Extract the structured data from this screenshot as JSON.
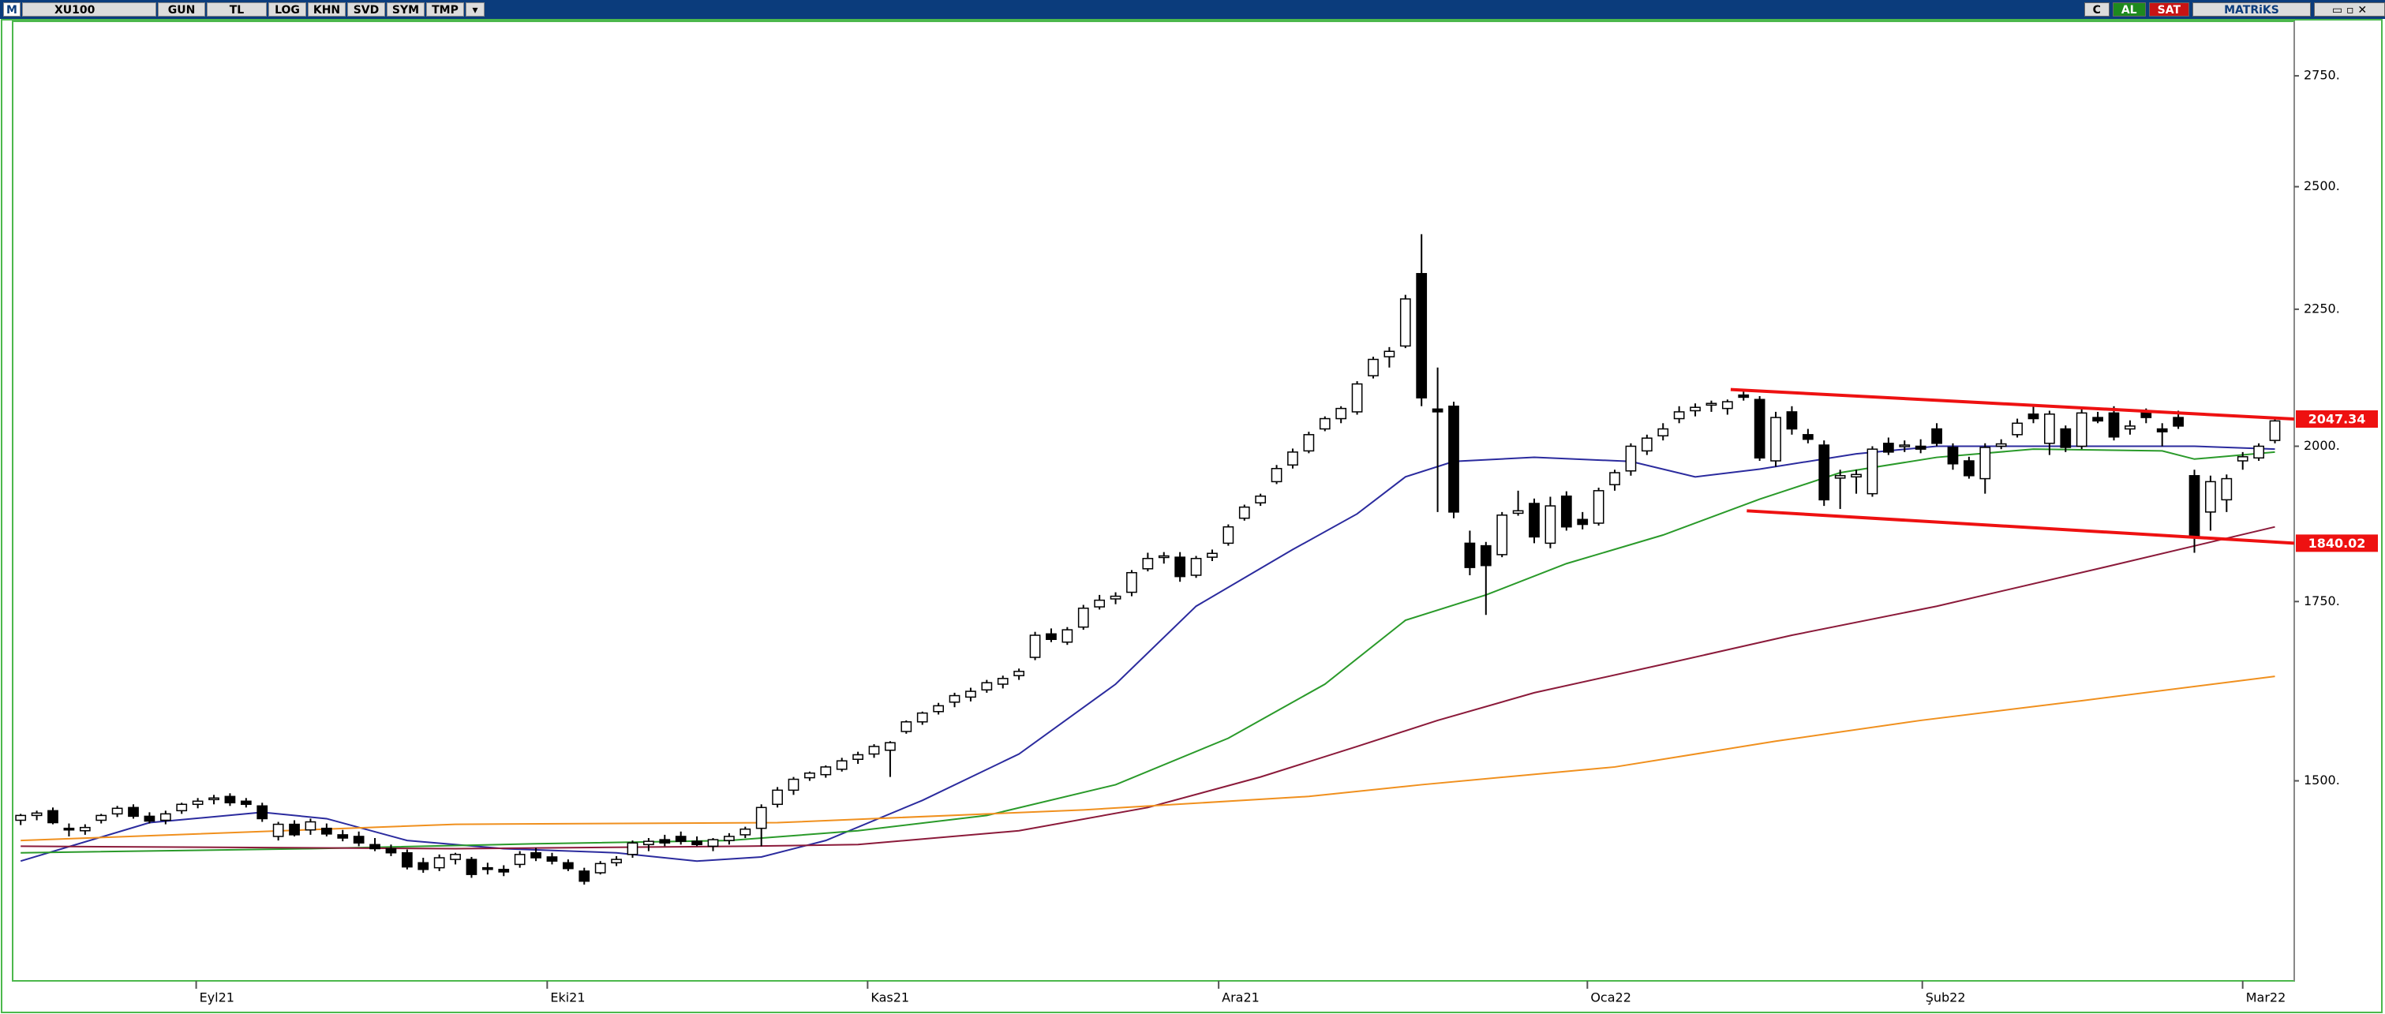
{
  "toolbar": {
    "logo": "M",
    "symbol": "XU100",
    "buttons": [
      "GUN",
      "TL",
      "LOG",
      "KHN",
      "SVD",
      "SYM",
      "TMP"
    ],
    "right": [
      "C",
      "AL",
      "SAT"
    ],
    "brand": "MATRiKS"
  },
  "chart_data": {
    "type": "candlestick",
    "log": true,
    "xlim": [
      -0.5,
      141.2
    ],
    "ylim": [
      1263,
      2882
    ],
    "xticks": [
      {
        "value": 10.9,
        "label": "Eyl21"
      },
      {
        "value": 32.7,
        "label": "Eki21"
      },
      {
        "value": 52.6,
        "label": "Kas21"
      },
      {
        "value": 74.4,
        "label": "Ara21"
      },
      {
        "value": 97.3,
        "label": "Oca22"
      },
      {
        "value": 118.1,
        "label": "Şub22"
      },
      {
        "value": 138,
        "label": "Mar22"
      }
    ],
    "yticks": [
      {
        "value": 2750,
        "label": "2750."
      },
      {
        "value": 2500,
        "label": "2500."
      },
      {
        "value": 2250,
        "label": "2250."
      },
      {
        "value": 2000,
        "label": "2000."
      },
      {
        "value": 1750,
        "label": "1750."
      },
      {
        "value": 1500,
        "label": "1500."
      }
    ],
    "up_color": "#ffffff",
    "down_color": "#000000",
    "open": [
      1450,
      1456,
      1462,
      1440,
      1437,
      1450,
      1458,
      1466,
      1455,
      1450,
      1462,
      1470,
      1476,
      1480,
      1474,
      1468,
      1430,
      1445,
      1438,
      1440,
      1432,
      1430,
      1420,
      1415,
      1410,
      1398,
      1392,
      1402,
      1402,
      1392,
      1390,
      1396,
      1410,
      1405,
      1398,
      1388,
      1386,
      1398,
      1408,
      1420,
      1426,
      1430,
      1424,
      1418,
      1425,
      1432,
      1440,
      1470,
      1488,
      1504,
      1508,
      1515,
      1528,
      1535,
      1540,
      1565,
      1578,
      1592,
      1605,
      1612,
      1622,
      1630,
      1642,
      1668,
      1702,
      1690,
      1712,
      1742,
      1754,
      1764,
      1800,
      1818,
      1818,
      1790,
      1818,
      1840,
      1880,
      1905,
      1940,
      1968,
      1992,
      2030,
      2048,
      2060,
      2125,
      2160,
      2180,
      2320,
      2065,
      2070,
      1840,
      1836,
      1822,
      1888,
      1904,
      1840,
      1916,
      1878,
      1872,
      1935,
      1958,
      1992,
      2018,
      2048,
      2062,
      2072,
      2066,
      2090,
      2082,
      1975,
      2060,
      2020,
      2002,
      1946,
      1948,
      1920,
      2005,
      2000,
      2000,
      2030,
      1998,
      1975,
      1945,
      2000,
      2020,
      2056,
      2005,
      2030,
      2000,
      2050,
      2058,
      2030,
      2060,
      2030,
      2050,
      1950,
      1890,
      1910,
      1975,
      1980,
      2010
    ],
    "high": [
      1458,
      1462,
      1466,
      1446,
      1445,
      1458,
      1468,
      1470,
      1460,
      1462,
      1472,
      1478,
      1482,
      1484,
      1478,
      1472,
      1448,
      1450,
      1452,
      1446,
      1438,
      1436,
      1428,
      1420,
      1414,
      1404,
      1408,
      1410,
      1405,
      1398,
      1395,
      1412,
      1416,
      1410,
      1402,
      1392,
      1400,
      1406,
      1425,
      1428,
      1432,
      1436,
      1430,
      1428,
      1434,
      1442,
      1470,
      1492,
      1505,
      1512,
      1520,
      1530,
      1538,
      1548,
      1552,
      1580,
      1592,
      1604,
      1618,
      1625,
      1636,
      1642,
      1652,
      1705,
      1710,
      1712,
      1745,
      1760,
      1764,
      1798,
      1825,
      1826,
      1826,
      1820,
      1830,
      1870,
      1902,
      1920,
      1968,
      1996,
      2025,
      2052,
      2070,
      2115,
      2160,
      2178,
      2278,
      2400,
      2140,
      2078,
      1860,
      1842,
      1890,
      1925,
      1912,
      1915,
      1924,
      1890,
      1930,
      1960,
      2005,
      2020,
      2040,
      2070,
      2075,
      2080,
      2082,
      2100,
      2088,
      2060,
      2070,
      2030,
      2010,
      1960,
      1960,
      2000,
      2015,
      2010,
      2012,
      2040,
      2005,
      1982,
      2005,
      2012,
      2048,
      2070,
      2062,
      2036,
      2068,
      2060,
      2070,
      2045,
      2066,
      2040,
      2062,
      1960,
      1950,
      1952,
      1990,
      2005,
      2050
    ],
    "low": [
      1444,
      1450,
      1445,
      1430,
      1432,
      1446,
      1454,
      1452,
      1446,
      1445,
      1458,
      1465,
      1470,
      1468,
      1466,
      1448,
      1425,
      1430,
      1432,
      1430,
      1424,
      1418,
      1412,
      1406,
      1390,
      1386,
      1388,
      1396,
      1380,
      1384,
      1382,
      1392,
      1400,
      1396,
      1388,
      1372,
      1384,
      1394,
      1404,
      1412,
      1418,
      1420,
      1418,
      1412,
      1420,
      1428,
      1418,
      1466,
      1482,
      1500,
      1504,
      1512,
      1522,
      1530,
      1505,
      1562,
      1574,
      1588,
      1598,
      1606,
      1618,
      1624,
      1636,
      1664,
      1690,
      1686,
      1708,
      1738,
      1746,
      1758,
      1796,
      1808,
      1780,
      1786,
      1812,
      1836,
      1876,
      1900,
      1936,
      1962,
      1988,
      2026,
      2040,
      2055,
      2120,
      2140,
      2176,
      2070,
      1890,
      1880,
      1790,
      1730,
      1818,
      1884,
      1840,
      1832,
      1860,
      1862,
      1868,
      1925,
      1950,
      1985,
      2010,
      2040,
      2052,
      2060,
      2055,
      2080,
      1975,
      1965,
      2020,
      2005,
      1900,
      1895,
      1920,
      1915,
      1985,
      1990,
      1988,
      2000,
      1960,
      1945,
      1920,
      1995,
      2015,
      2040,
      1985,
      1990,
      1995,
      2040,
      2010,
      2020,
      2040,
      2000,
      2030,
      1825,
      1860,
      1890,
      1960,
      1975,
      2005
    ],
    "close": [
      1456,
      1459,
      1447,
      1438,
      1441,
      1456,
      1465,
      1455,
      1449,
      1458,
      1470,
      1474,
      1478,
      1472,
      1470,
      1452,
      1445,
      1432,
      1448,
      1433,
      1428,
      1422,
      1415,
      1410,
      1393,
      1390,
      1404,
      1408,
      1384,
      1390,
      1387,
      1408,
      1404,
      1400,
      1391,
      1376,
      1397,
      1402,
      1422,
      1424,
      1422,
      1424,
      1420,
      1426,
      1430,
      1439,
      1466,
      1488,
      1502,
      1510,
      1518,
      1526,
      1534,
      1545,
      1550,
      1578,
      1590,
      1600,
      1614,
      1620,
      1632,
      1638,
      1648,
      1700,
      1694,
      1708,
      1740,
      1752,
      1758,
      1794,
      1816,
      1820,
      1788,
      1816,
      1824,
      1866,
      1898,
      1916,
      1962,
      1990,
      2020,
      2048,
      2066,
      2110,
      2155,
      2170,
      2270,
      2085,
      2060,
      1890,
      1802,
      1805,
      1885,
      1892,
      1850,
      1900,
      1866,
      1870,
      1925,
      1955,
      2000,
      2014,
      2030,
      2060,
      2068,
      2075,
      2078,
      2086,
      1980,
      2050,
      2030,
      2012,
      1910,
      1950,
      1952,
      1995,
      1990,
      2002,
      1995,
      2005,
      1970,
      1950,
      1998,
      2004,
      2040,
      2048,
      2056,
      1998,
      2058,
      2044,
      2016,
      2035,
      2050,
      2025,
      2035,
      1852,
      1940,
      1945,
      1982,
      2000,
      2044
    ],
    "lines": [
      {
        "color": "#2b2b9e",
        "x": [
          0,
          8,
          15,
          19,
          24,
          30,
          37,
          42,
          46,
          50,
          56,
          62,
          68,
          73,
          79,
          83,
          86,
          89,
          94,
          100,
          104,
          108,
          114,
          119,
          125,
          131,
          135,
          140
        ],
        "values": [
          1400,
          1447,
          1460,
          1452,
          1425,
          1415,
          1410,
          1400,
          1405,
          1425,
          1475,
          1535,
          1630,
          1743,
          1830,
          1887,
          1948,
          1974,
          1981,
          1974,
          1948,
          1961,
          1987,
          2000,
          2000,
          2000,
          2000,
          1995
        ]
      },
      {
        "color": "#2a9a2a",
        "x": [
          0,
          18,
          32,
          44,
          52,
          60,
          68,
          75,
          81,
          86,
          91,
          96,
          102,
          108,
          113,
          119,
          125,
          133,
          135,
          140
        ],
        "values": [
          1410,
          1415,
          1421,
          1425,
          1437,
          1456,
          1495,
          1556,
          1630,
          1722,
          1760,
          1808,
          1853,
          1911,
          1955,
          1981,
          1995,
          1992,
          1978,
          1990
        ]
      },
      {
        "color": "#8b1a3a",
        "x": [
          0,
          27,
          45,
          52,
          62,
          70,
          77,
          83,
          88,
          94,
          102,
          110,
          119,
          129,
          140
        ],
        "values": [
          1418,
          1415,
          1418,
          1420,
          1437,
          1466,
          1505,
          1545,
          1580,
          1618,
          1658,
          1700,
          1743,
          1800,
          1866
        ]
      },
      {
        "color": "#f0901e",
        "x": [
          0,
          27,
          47,
          66,
          80,
          87,
          99,
          109,
          118,
          128,
          140
        ],
        "values": [
          1425,
          1445,
          1447,
          1463,
          1480,
          1495,
          1518,
          1552,
          1580,
          1607,
          1641
        ]
      }
    ],
    "trendlines": [
      {
        "color": "#ee1111",
        "x": [
          106.2,
          141.2
        ],
        "values": [
          2100,
          2047.34
        ]
      },
      {
        "color": "#ee1111",
        "x": [
          107.2,
          141.2
        ],
        "values": [
          1892,
          1840.02
        ]
      }
    ]
  }
}
